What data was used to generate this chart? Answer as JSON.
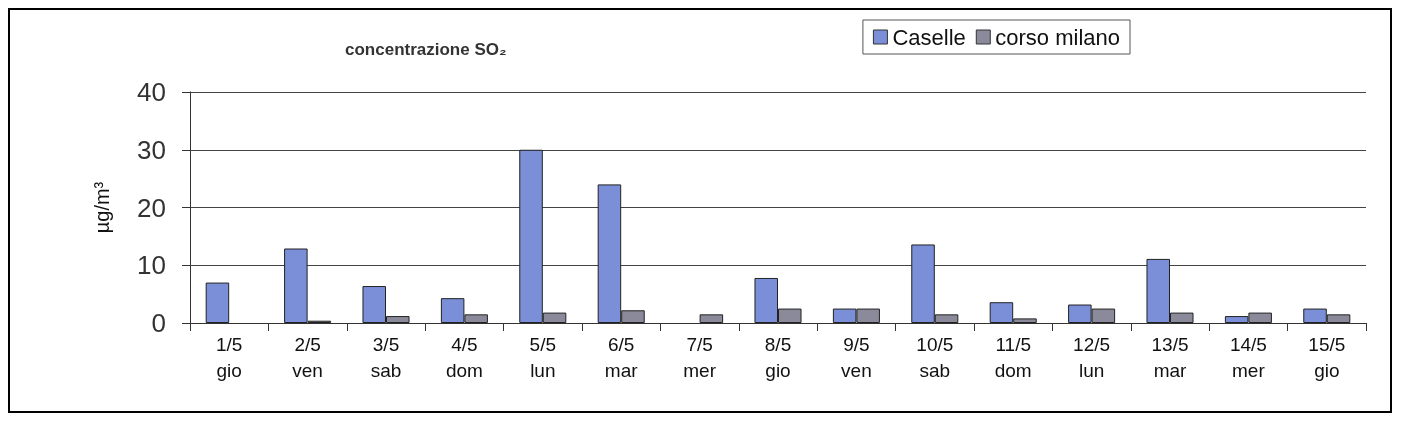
{
  "chart_data": {
    "type": "bar",
    "title": "concentrazione SO₂",
    "ylabel": "µg/m³",
    "categories": [
      "1/5\ngio",
      "2/5\nven",
      "3/5\nsab",
      "4/5\ndom",
      "5/5\nlun",
      "6/5\nmar",
      "7/5\nmer",
      "8/5\ngio",
      "9/5\nven",
      "10/5\nsab",
      "11/5\ndom",
      "12/5\nlun",
      "13/5\nmar",
      "14/5\nmer",
      "15/5\ngio"
    ],
    "series": [
      {
        "name": "Caselle",
        "color": "#7b8fd8",
        "values": [
          7.0,
          12.9,
          6.4,
          4.3,
          30,
          24.0,
          null,
          7.8,
          2.5,
          13.6,
          3.6,
          3.2,
          11.1,
          1.2,
          2.5
        ]
      },
      {
        "name": "corso milano",
        "color": "#8a8a9a",
        "values": [
          null,
          0.4,
          1.2,
          1.5,
          1.8,
          2.2,
          1.5,
          2.5,
          2.5,
          1.5,
          0.8,
          2.5,
          1.8,
          1.8,
          1.5
        ]
      }
    ],
    "ylim": [
      0,
      40
    ],
    "yticks": [
      0,
      10,
      20,
      30,
      40
    ],
    "grid": "y",
    "legend": "top right"
  }
}
